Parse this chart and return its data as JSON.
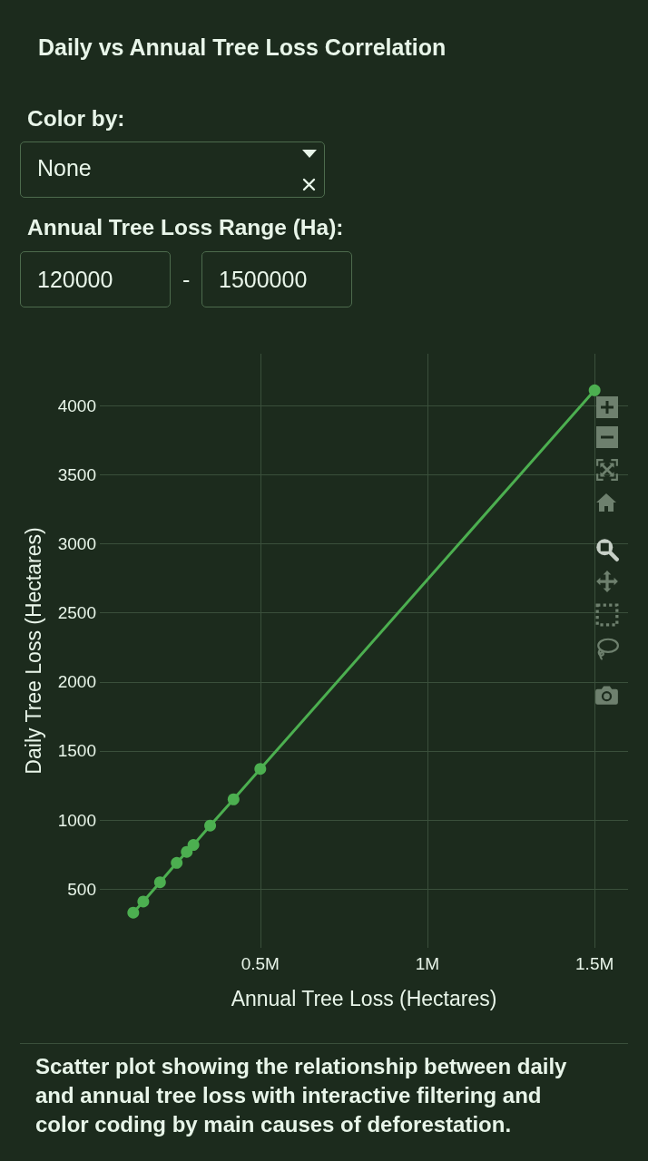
{
  "chart_data": {
    "type": "line",
    "title": "Daily vs Annual Tree Loss Correlation",
    "xlabel": "Annual Tree Loss (Hectares)",
    "ylabel": "Daily Tree Loss (Hectares)",
    "x": [
      120000,
      150000,
      200000,
      250000,
      280000,
      300000,
      350000,
      420000,
      500000,
      1500000
    ],
    "series": [
      {
        "color": "#4caf50",
        "values": [
          330,
          410,
          550,
          690,
          770,
          820,
          960,
          1150,
          1370,
          4110
        ]
      }
    ],
    "xlim": [
      20000,
      1600000
    ],
    "xticks": [
      {
        "value": 500000,
        "label": "0.5M"
      },
      {
        "value": 1000000,
        "label": "1M"
      },
      {
        "value": 1500000,
        "label": "1.5M"
      }
    ],
    "ylim": [
      75,
      4375
    ],
    "yticks": [
      500,
      1000,
      1500,
      2000,
      2500,
      3000,
      3500,
      4000
    ],
    "grid": true,
    "marker": "circle",
    "line_style": "solid",
    "annotations": [
      "Color by:",
      "None",
      "Annual Tree Loss Range (Ha):",
      "120000",
      "-",
      "1500000",
      "Scatter plot showing the relationship between daily and annual tree loss with interactive filtering and color coding by main causes of deforestation."
    ]
  }
}
